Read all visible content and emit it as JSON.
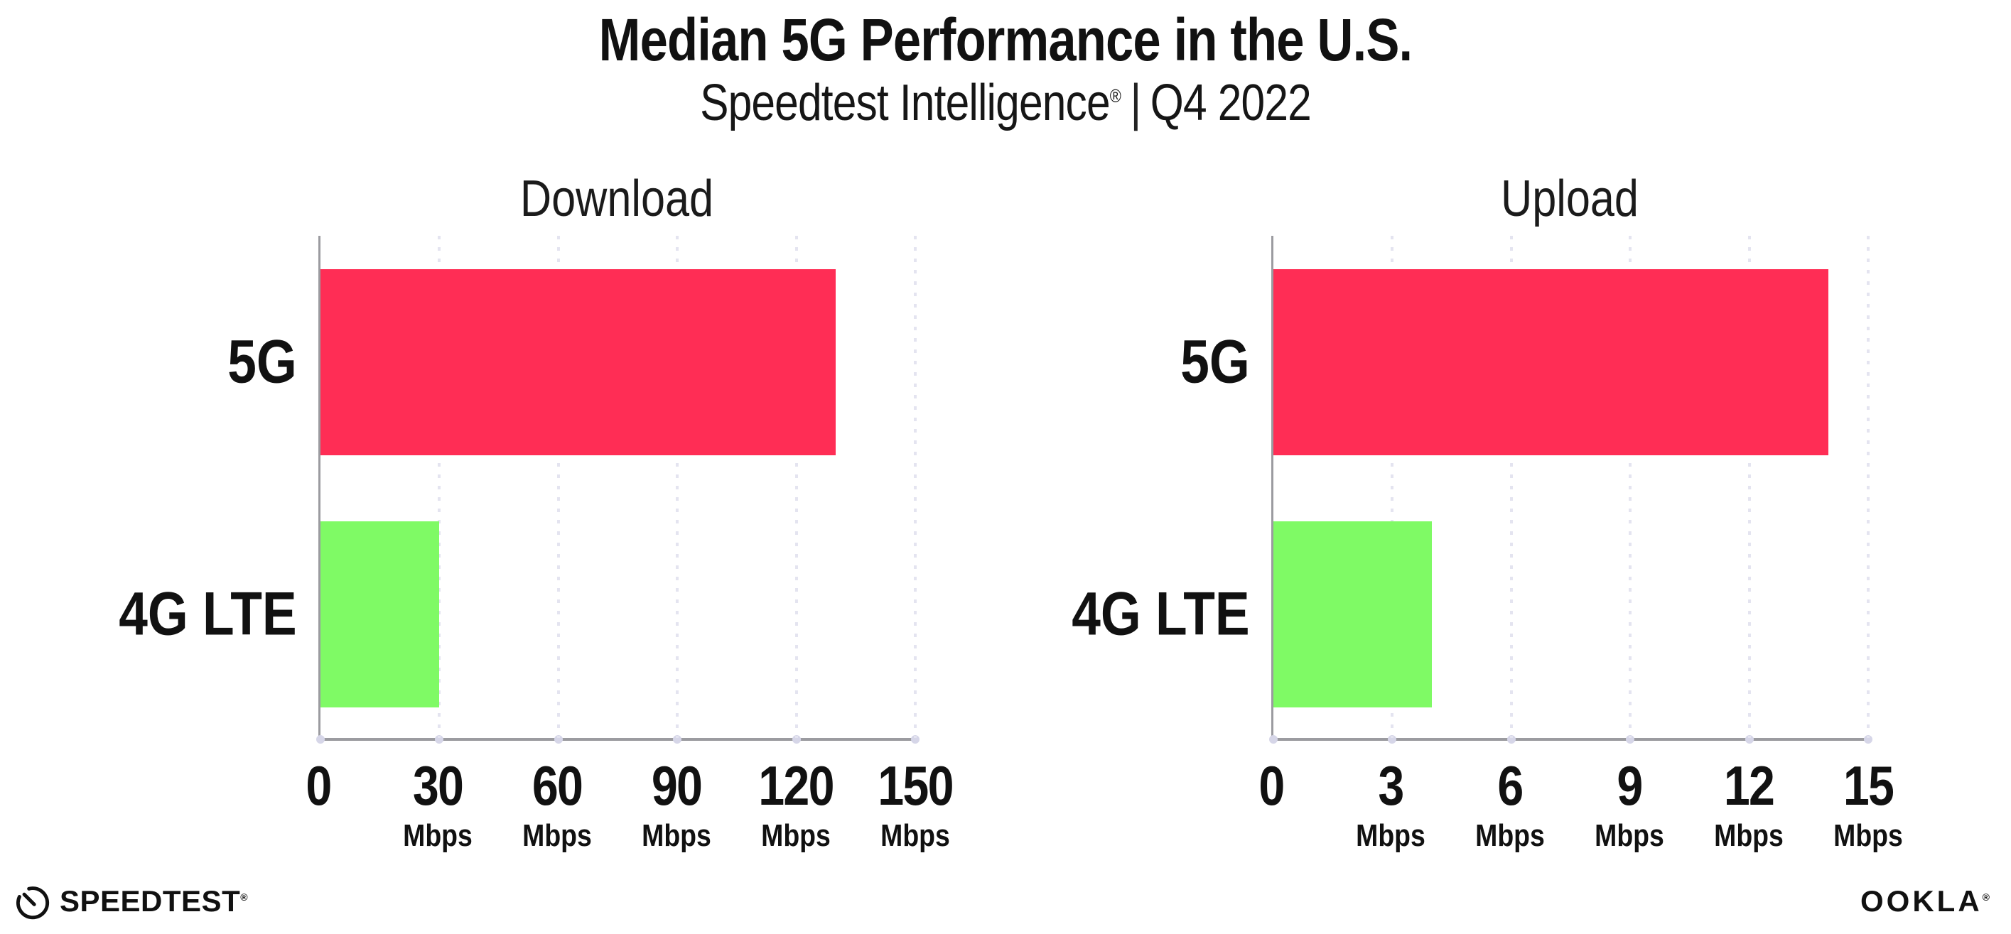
{
  "header": {
    "title": "Median 5G Performance in the U.S.",
    "subtitle_brand": "Speedtest Intelligence",
    "subtitle_reg": "®",
    "subtitle_separator": "|",
    "subtitle_period": "Q4 2022"
  },
  "footer": {
    "speedtest_label": "SPEEDTEST",
    "speedtest_mark": "®",
    "speedtest_icon": "gauge-icon",
    "ookla_label": "OOKLA",
    "ookla_mark": "®"
  },
  "colors": {
    "bar_5g": "#FF2D55",
    "bar_4g_lte": "#7FFA65",
    "axis": "#9B9BA0",
    "gridline": "#E4E4F0",
    "text": "#111111",
    "background": "#FFFFFF"
  },
  "chart_data": [
    {
      "type": "bar",
      "orientation": "horizontal",
      "title": "Download",
      "categories": [
        "5G",
        "4G LTE"
      ],
      "values": [
        130,
        30
      ],
      "unit": "Mbps",
      "xlabel": "",
      "ylabel": "",
      "xlim": [
        0,
        150
      ],
      "xticks": [
        0,
        30,
        60,
        90,
        120,
        150
      ],
      "bar_colors": [
        "#FF2D55",
        "#7FFA65"
      ],
      "grid": "vertical-dotted",
      "legend": "none"
    },
    {
      "type": "bar",
      "orientation": "horizontal",
      "title": "Upload",
      "categories": [
        "5G",
        "4G LTE"
      ],
      "values": [
        14,
        4
      ],
      "unit": "Mbps",
      "xlabel": "",
      "ylabel": "",
      "xlim": [
        0,
        15
      ],
      "xticks": [
        0,
        3,
        6,
        9,
        12,
        15
      ],
      "bar_colors": [
        "#FF2D55",
        "#7FFA65"
      ],
      "grid": "vertical-dotted",
      "legend": "none"
    }
  ]
}
